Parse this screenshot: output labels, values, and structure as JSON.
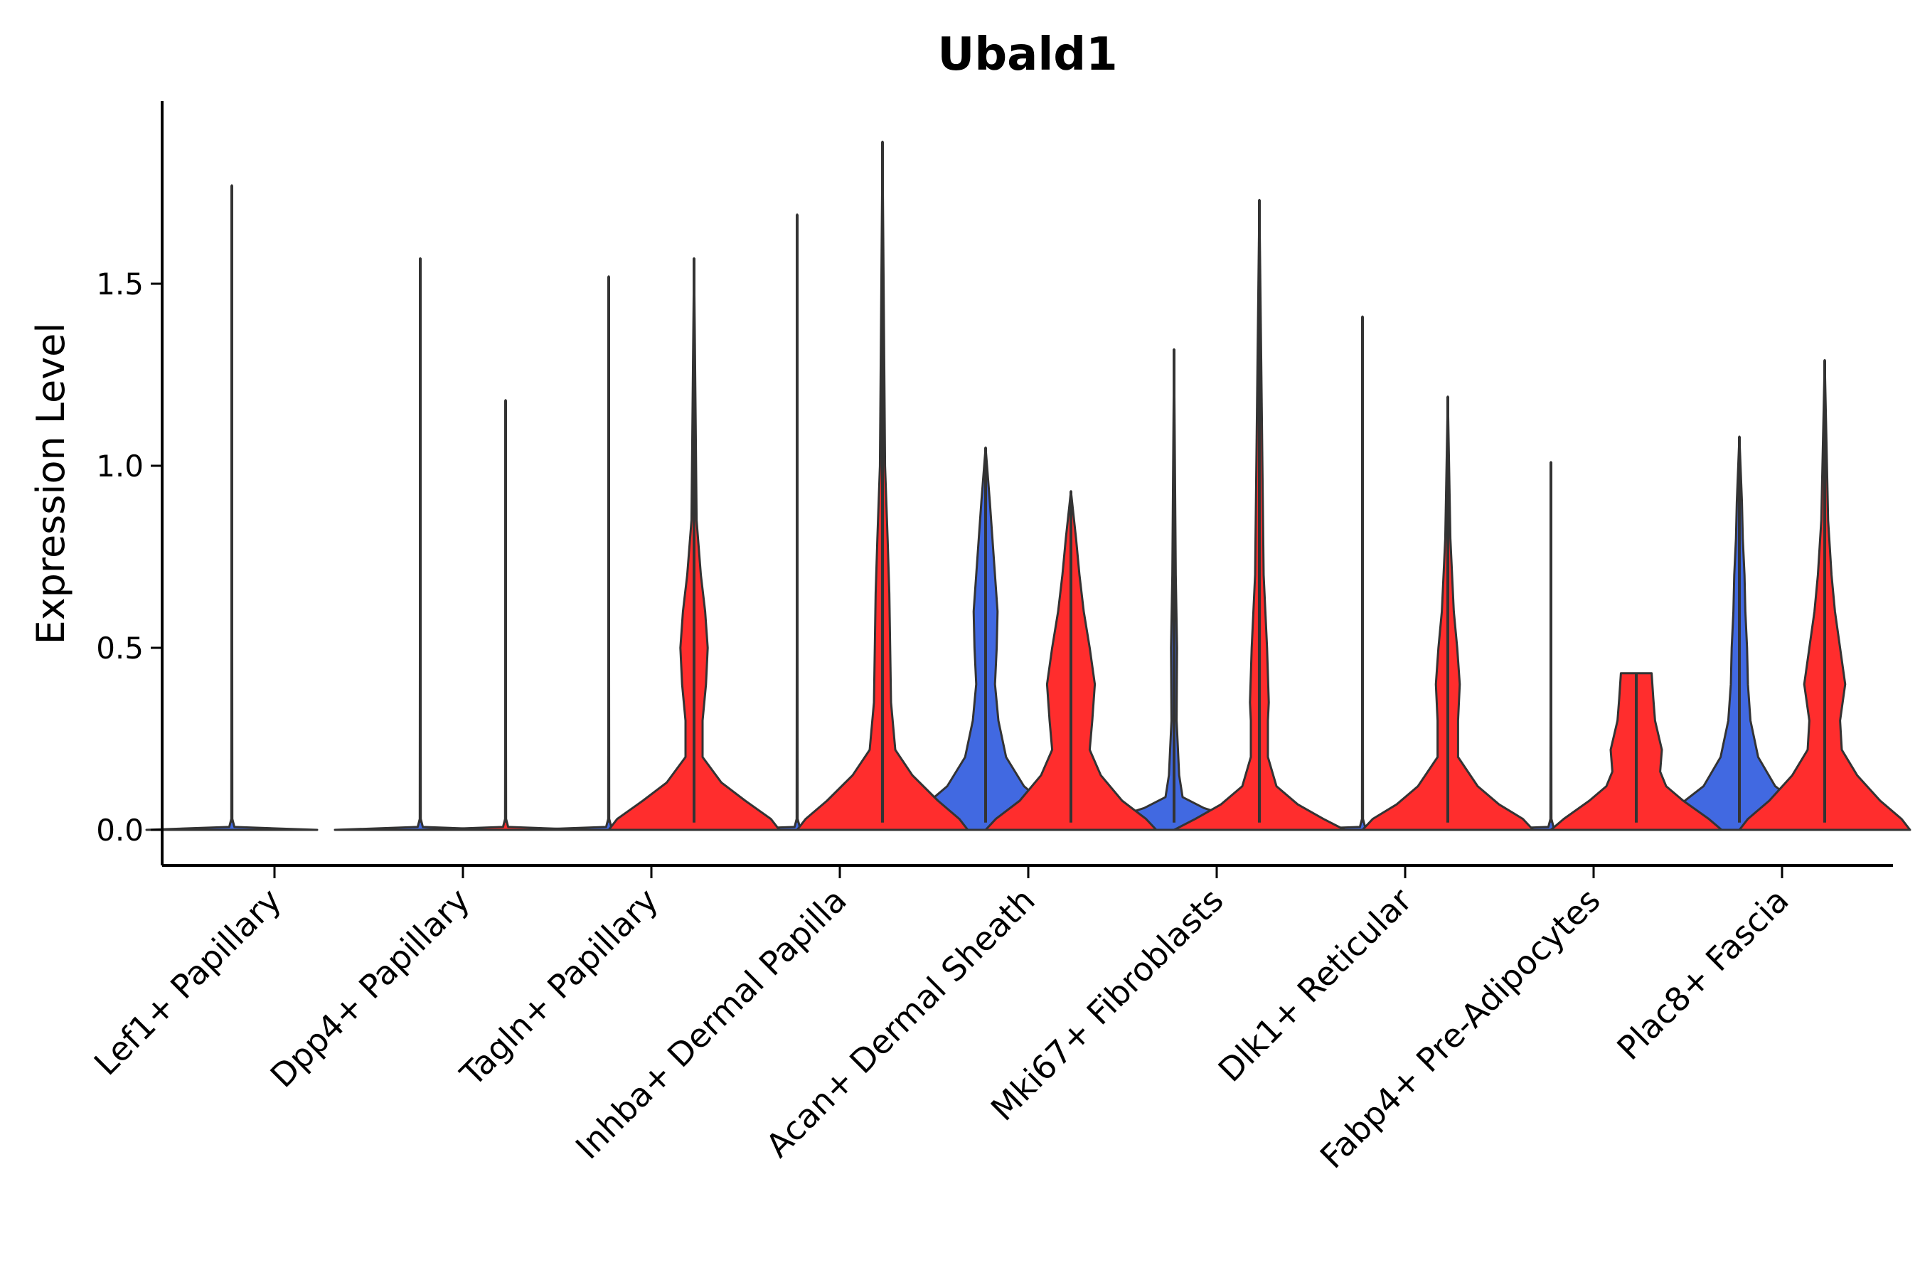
{
  "chart_data": {
    "type": "violin",
    "title": "Ubald1",
    "xlabel": "",
    "ylabel": "Expression Level",
    "ylim": [
      -0.1,
      1.98
    ],
    "yticks": [
      0.0,
      0.5,
      1.0,
      1.5
    ],
    "ytick_labels": [
      "0.0",
      "0.5",
      "1.0",
      "1.5"
    ],
    "colors": {
      "blue": "#4169E1",
      "red": "#FF2D2D",
      "outline": "#333333"
    },
    "categories": [
      "Lef1+ Papillary",
      "Dpp4+ Papillary",
      "Tagln+ Papillary",
      "Inhba+ Dermal Papilla",
      "Acan+ Dermal Sheath",
      "Mki67+ Fibroblasts",
      "Dlk1+ Reticular",
      "Fabp4+ Pre-Adipocytes",
      "Plac8+ Fascia"
    ],
    "series": [
      {
        "name": "blue",
        "color": "#4169E1",
        "max_values": [
          1.77,
          1.57,
          1.52,
          1.69,
          1.05,
          1.32,
          1.41,
          1.01,
          1.08
        ],
        "profiles": [
          [
            [
              0,
              1
            ],
            [
              0.008,
              0.03
            ],
            [
              0.03,
              0.006
            ],
            [
              1.77,
              0
            ]
          ],
          [
            [
              0,
              1
            ],
            [
              0.008,
              0.03
            ],
            [
              0.03,
              0.006
            ],
            [
              1.57,
              0
            ]
          ],
          [
            [
              0,
              1
            ],
            [
              0.008,
              0.03
            ],
            [
              0.03,
              0.006
            ],
            [
              1.52,
              0
            ]
          ],
          [
            [
              0,
              1
            ],
            [
              0.008,
              0.03
            ],
            [
              0.03,
              0.006
            ],
            [
              1.69,
              0
            ]
          ],
          [
            [
              0,
              1
            ],
            [
              0.03,
              0.95
            ],
            [
              0.06,
              0.75
            ],
            [
              0.12,
              0.45
            ],
            [
              0.2,
              0.24
            ],
            [
              0.3,
              0.15
            ],
            [
              0.4,
              0.11
            ],
            [
              0.5,
              0.13
            ],
            [
              0.6,
              0.14
            ],
            [
              0.7,
              0.11
            ],
            [
              0.8,
              0.08
            ],
            [
              0.9,
              0.05
            ],
            [
              1.05,
              0
            ]
          ],
          [
            [
              0,
              1
            ],
            [
              0.03,
              0.75
            ],
            [
              0.06,
              0.35
            ],
            [
              0.09,
              0.1
            ],
            [
              0.15,
              0.06
            ],
            [
              0.3,
              0.03
            ],
            [
              0.5,
              0.035
            ],
            [
              0.7,
              0.02
            ],
            [
              1.32,
              0
            ]
          ],
          [
            [
              0,
              1
            ],
            [
              0.008,
              0.03
            ],
            [
              0.03,
              0.006
            ],
            [
              1.41,
              0
            ]
          ],
          [
            [
              0,
              1
            ],
            [
              0.008,
              0.03
            ],
            [
              0.03,
              0.006
            ],
            [
              1.01,
              0
            ]
          ],
          [
            [
              0,
              1
            ],
            [
              0.03,
              0.95
            ],
            [
              0.06,
              0.75
            ],
            [
              0.12,
              0.42
            ],
            [
              0.2,
              0.22
            ],
            [
              0.3,
              0.13
            ],
            [
              0.4,
              0.1
            ],
            [
              0.5,
              0.09
            ],
            [
              0.6,
              0.07
            ],
            [
              0.7,
              0.06
            ],
            [
              0.8,
              0.04
            ],
            [
              0.9,
              0.03
            ],
            [
              1.08,
              0
            ]
          ]
        ]
      },
      {
        "name": "red",
        "color": "#FF2D2D",
        "max_values": [
          null,
          1.18,
          1.57,
          1.89,
          0.93,
          1.73,
          1.19,
          0.43,
          1.29
        ],
        "profiles": [
          null,
          [
            [
              0,
              1
            ],
            [
              0.008,
              0.03
            ],
            [
              0.03,
              0.006
            ],
            [
              1.18,
              0
            ]
          ],
          [
            [
              0,
              1
            ],
            [
              0.03,
              0.9
            ],
            [
              0.08,
              0.6
            ],
            [
              0.13,
              0.32
            ],
            [
              0.2,
              0.1
            ],
            [
              0.3,
              0.1
            ],
            [
              0.4,
              0.14
            ],
            [
              0.5,
              0.16
            ],
            [
              0.6,
              0.13
            ],
            [
              0.7,
              0.08
            ],
            [
              0.85,
              0.03
            ],
            [
              1.57,
              0
            ]
          ],
          [
            [
              0,
              1
            ],
            [
              0.03,
              0.9
            ],
            [
              0.08,
              0.65
            ],
            [
              0.15,
              0.35
            ],
            [
              0.22,
              0.15
            ],
            [
              0.35,
              0.1
            ],
            [
              0.5,
              0.09
            ],
            [
              0.65,
              0.08
            ],
            [
              0.8,
              0.06
            ],
            [
              1.0,
              0.03
            ],
            [
              1.89,
              0
            ]
          ],
          [
            [
              0,
              1
            ],
            [
              0.03,
              0.88
            ],
            [
              0.08,
              0.6
            ],
            [
              0.15,
              0.35
            ],
            [
              0.22,
              0.22
            ],
            [
              0.3,
              0.25
            ],
            [
              0.4,
              0.28
            ],
            [
              0.5,
              0.22
            ],
            [
              0.6,
              0.15
            ],
            [
              0.7,
              0.1
            ],
            [
              0.8,
              0.06
            ],
            [
              0.93,
              0
            ]
          ],
          [
            [
              0,
              1
            ],
            [
              0.03,
              0.75
            ],
            [
              0.07,
              0.45
            ],
            [
              0.12,
              0.2
            ],
            [
              0.2,
              0.1
            ],
            [
              0.3,
              0.1
            ],
            [
              0.35,
              0.11
            ],
            [
              0.5,
              0.09
            ],
            [
              0.7,
              0.05
            ],
            [
              1.73,
              0
            ]
          ],
          [
            [
              0,
              1
            ],
            [
              0.03,
              0.88
            ],
            [
              0.07,
              0.6
            ],
            [
              0.12,
              0.35
            ],
            [
              0.2,
              0.12
            ],
            [
              0.3,
              0.12
            ],
            [
              0.4,
              0.14
            ],
            [
              0.5,
              0.11
            ],
            [
              0.6,
              0.07
            ],
            [
              0.8,
              0.03
            ],
            [
              1.19,
              0
            ]
          ],
          [
            [
              0,
              1
            ],
            [
              0.03,
              0.85
            ],
            [
              0.08,
              0.55
            ],
            [
              0.12,
              0.35
            ],
            [
              0.16,
              0.28
            ],
            [
              0.22,
              0.3
            ],
            [
              0.3,
              0.22
            ],
            [
              0.36,
              0.2
            ],
            [
              0.43,
              0.18
            ],
            [
              0.43,
              0
            ]
          ],
          [
            [
              0,
              1
            ],
            [
              0.03,
              0.9
            ],
            [
              0.08,
              0.65
            ],
            [
              0.15,
              0.38
            ],
            [
              0.22,
              0.2
            ],
            [
              0.3,
              0.18
            ],
            [
              0.4,
              0.24
            ],
            [
              0.5,
              0.18
            ],
            [
              0.6,
              0.12
            ],
            [
              0.7,
              0.08
            ],
            [
              0.85,
              0.04
            ],
            [
              1.29,
              0
            ]
          ]
        ]
      }
    ]
  }
}
